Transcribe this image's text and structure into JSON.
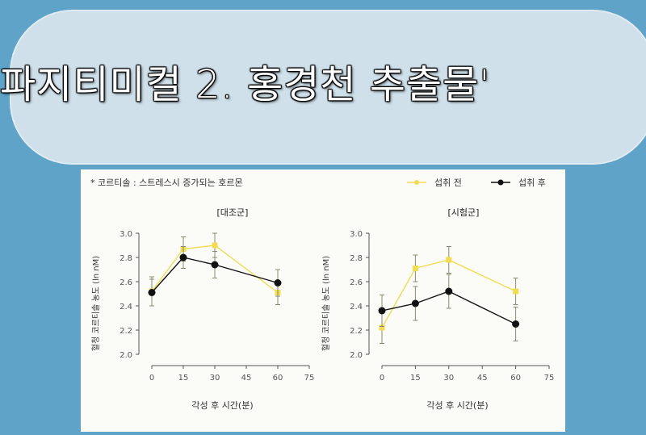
{
  "slide": {
    "title": "파지티미컬 2. 홍경천 추출물'"
  },
  "figure": {
    "note": "* 코르티솔 : 스트레스시 증가되는 호르몬",
    "legend": {
      "before": "섭취 전",
      "after": "섭취 후"
    },
    "colors": {
      "before": "#f2dc50",
      "after": "#111111",
      "errorbar": "#8a8a72",
      "background": "#fbfbf8"
    }
  },
  "chart_data": [
    {
      "type": "line",
      "title": "[대조군]",
      "xlabel": "각성 후 시간(분)",
      "ylabel": "혈청 코르티솔 농도 (ln nM)",
      "x": [
        0,
        15,
        30,
        60
      ],
      "xticks": [
        "0",
        "15",
        "30",
        "45",
        "60",
        "75"
      ],
      "yticks": [
        "2.0",
        "2.2",
        "2.4",
        "2.6",
        "2.8",
        "3.0"
      ],
      "xlim": [
        0,
        75
      ],
      "ylim": [
        2.0,
        3.0
      ],
      "series": [
        {
          "name": "섭취 전",
          "values": [
            2.52,
            2.87,
            2.9,
            2.51
          ],
          "err": [
            0.12,
            0.1,
            0.1,
            0.1
          ]
        },
        {
          "name": "섭취 후",
          "values": [
            2.51,
            2.8,
            2.74,
            2.59
          ],
          "err": [
            0.11,
            0.09,
            0.11,
            0.11
          ]
        }
      ]
    },
    {
      "type": "line",
      "title": "[시험군]",
      "xlabel": "각성 후 시간(분)",
      "ylabel": "혈청 코르티솔 농도 (ln nM)",
      "x": [
        0,
        15,
        30,
        60
      ],
      "xticks": [
        "0",
        "15",
        "30",
        "45",
        "60",
        "75"
      ],
      "yticks": [
        "2.0",
        "2.2",
        "2.4",
        "2.6",
        "2.8",
        "3.0"
      ],
      "xlim": [
        0,
        75
      ],
      "ylim": [
        2.0,
        3.0
      ],
      "series": [
        {
          "name": "섭취 전",
          "values": [
            2.22,
            2.71,
            2.78,
            2.52
          ],
          "err": [
            0.13,
            0.11,
            0.11,
            0.11
          ]
        },
        {
          "name": "섭취 후",
          "values": [
            2.36,
            2.42,
            2.52,
            2.25
          ],
          "err": [
            0.13,
            0.14,
            0.14,
            0.14
          ]
        }
      ]
    }
  ]
}
